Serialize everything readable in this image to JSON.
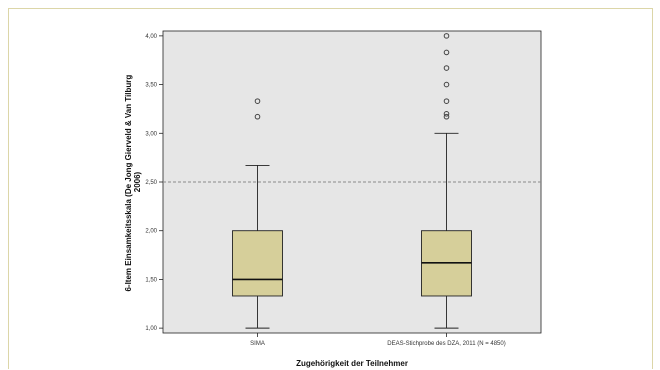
{
  "chart_data": {
    "type": "box",
    "xlabel": "Zugehörigkeit der Teilnehmer",
    "ylabel_lines": [
      "6-Item Einsamkeitsskala (De Jong Gierveld & Van Tilburg",
      "2006)"
    ],
    "yticks": [
      "1,00",
      "1,50",
      "2,00",
      "2,50",
      "3,00",
      "3,50",
      "4,00"
    ],
    "ytick_values": [
      1.0,
      1.5,
      2.0,
      2.5,
      3.0,
      3.5,
      4.0
    ],
    "ylim": [
      0.95,
      4.05
    ],
    "reference_line": 2.5,
    "categories": [
      {
        "label": "SIMA",
        "min": 1.0,
        "q1": 1.33,
        "median": 1.5,
        "q3": 2.0,
        "max": 2.67,
        "outliers": [
          3.17,
          3.33
        ]
      },
      {
        "label": "DEAS-Stichprobe des DZA, 2011 (N = 4850)",
        "min": 1.0,
        "q1": 1.33,
        "median": 1.67,
        "q3": 2.0,
        "max": 3.0,
        "outliers": [
          3.17,
          3.2,
          3.33,
          3.5,
          3.67,
          3.83,
          4.0
        ]
      }
    ],
    "colors": {
      "box": "#d6cf9a",
      "plot_bg": "#e6e6e6",
      "reference": "#8a8a8a"
    },
    "grid": false
  }
}
